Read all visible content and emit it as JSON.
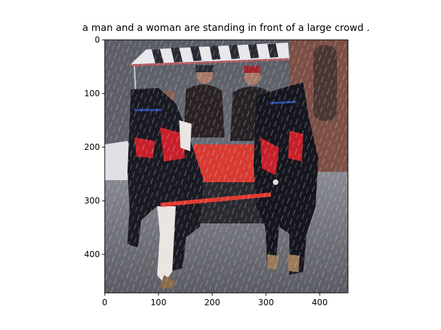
{
  "figure": {
    "title": "a man and a woman are standing in front of a large crowd .",
    "x_ticks": [
      "0",
      "100",
      "200",
      "300",
      "400"
    ],
    "y_ticks": [
      "0",
      "100",
      "200",
      "300",
      "400"
    ],
    "image_description": "Horse-drawn carriage with striped canopy pulled by two dark horses on a wet snowy street, two drivers in winter clothing, brick building behind",
    "colors": {
      "canopy_stripe_dark": "#2a2a34",
      "canopy_stripe_light": "#e8e8ec",
      "brick": "#7d4f45",
      "horse": "#1a1a22",
      "harness_red": "#c8202a",
      "carriage_red": "#d83a32",
      "road": "#6f7078",
      "snow": "#dcdde4"
    }
  }
}
